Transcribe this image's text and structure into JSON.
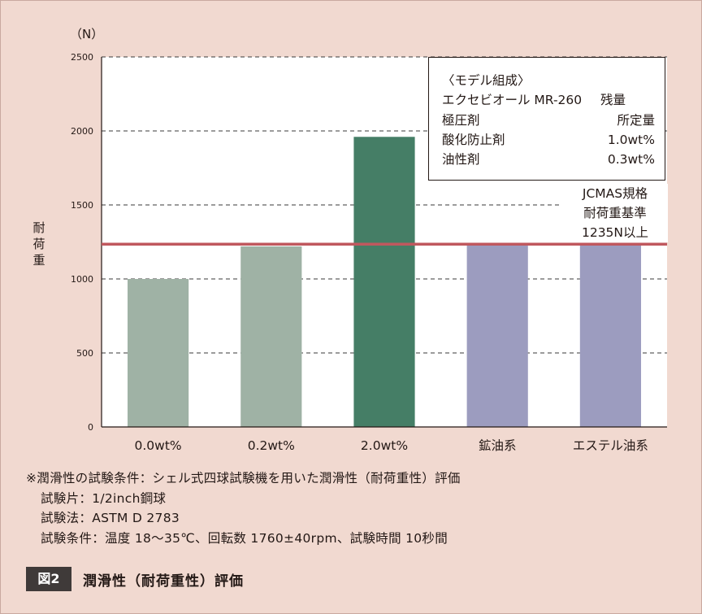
{
  "chart_data": {
    "type": "bar",
    "unit_label": "（N）",
    "ylabel": "耐荷重",
    "ylim": [
      0,
      2500
    ],
    "yticks": [
      "0",
      "500",
      "1000",
      "1500",
      "2000",
      "2500"
    ],
    "grid": "dashed horizontal",
    "categories": [
      "0.0wt%",
      "0.2wt%",
      "2.0wt%",
      "鉱油系",
      "エステル油系"
    ],
    "values": [
      1000,
      1220,
      1960,
      1230,
      1230
    ],
    "bar_colors": [
      "#9fb2a5",
      "#9fb2a5",
      "#457e66",
      "#9c9cbf",
      "#9c9cbf"
    ],
    "reference_line": {
      "value": 1235,
      "color": "#c0585e",
      "label_lines": [
        "JCMAS規格",
        "耐荷重基準",
        "1235N以上"
      ]
    },
    "legend_box": {
      "title": "〈モデル組成〉",
      "rows": [
        {
          "name": "エクセビオール MR-260",
          "value": "残量"
        },
        {
          "name": "極圧剤",
          "value": "所定量"
        },
        {
          "name": "酸化防止剤",
          "value": "1.0wt%"
        },
        {
          "name": "油性剤",
          "value": "0.3wt%"
        }
      ]
    }
  },
  "notes": {
    "line1": "※潤滑性の試験条件：シェル式四球試験機を用いた潤滑性（耐荷重性）評価",
    "line2": "試験片：1/2inch鋼球",
    "line3": "試験法：ASTM D 2783",
    "line4": "試験条件：温度 18～35℃、回転数 1760±40rpm、試験時間 10秒間"
  },
  "caption": {
    "label": "図2",
    "title": "潤滑性（耐荷重性）評価"
  }
}
